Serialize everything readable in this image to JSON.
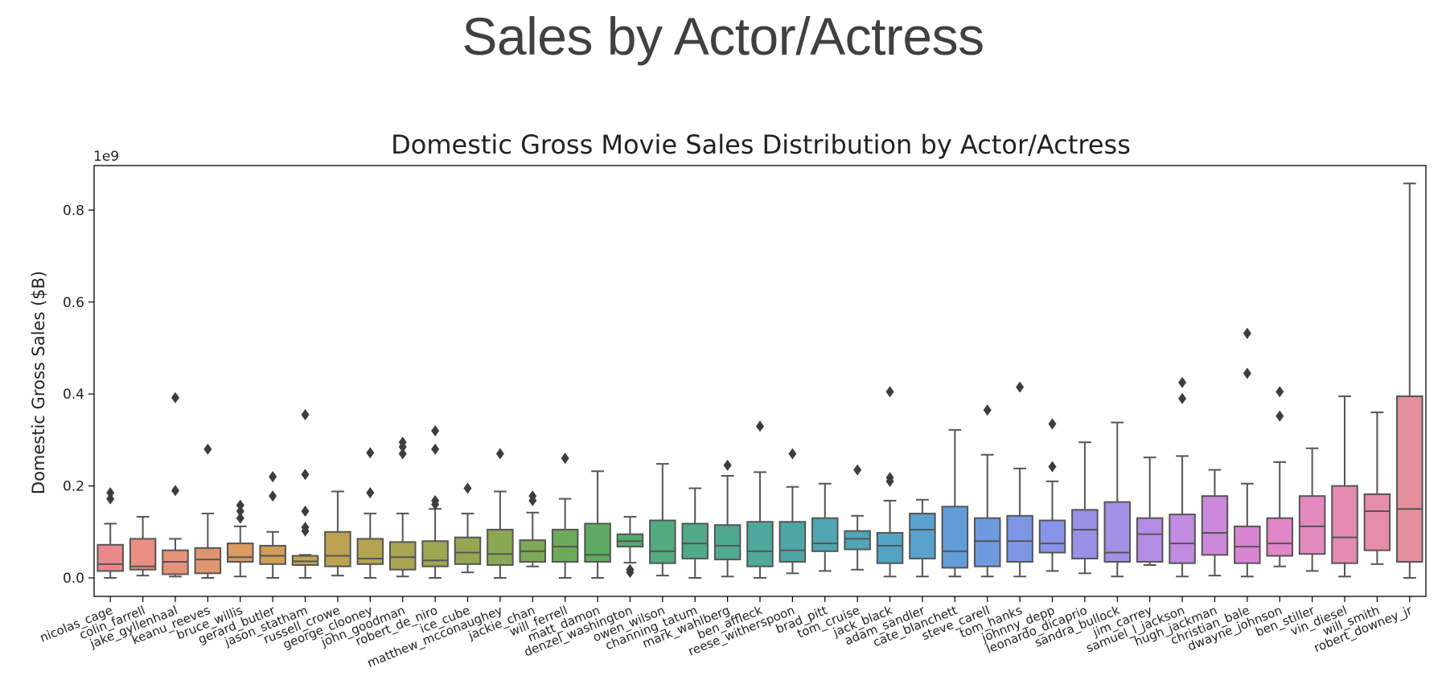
{
  "slide": {
    "title": "Sales by Actor/Actress"
  },
  "chart_data": {
    "type": "box",
    "title": "Domestic Gross Movie Sales Distribution by Actor/Actress",
    "ylabel": "Domestic Gross Sales ($B)",
    "xlabel": "",
    "y_offset_label": "1e9",
    "ylim": [
      -0.045,
      0.9
    ],
    "yticks": [
      0.0,
      0.2,
      0.4,
      0.6,
      0.8
    ],
    "ytick_labels": [
      "0.0",
      "0.2",
      "0.4",
      "0.6",
      "0.8"
    ],
    "grid": false,
    "boxes": [
      {
        "label": "nicolas_cage",
        "color": "#e9898b",
        "q1": 0.015,
        "median": 0.03,
        "q3": 0.072,
        "whislo": 0.0,
        "whishi": 0.118,
        "outliers": [
          0.172,
          0.185
        ]
      },
      {
        "label": "colin_farrell",
        "color": "#e88f82",
        "q1": 0.018,
        "median": 0.025,
        "q3": 0.085,
        "whislo": 0.005,
        "whishi": 0.133,
        "outliers": []
      },
      {
        "label": "jake_gyllenhaal",
        "color": "#e59379",
        "q1": 0.008,
        "median": 0.035,
        "q3": 0.06,
        "whislo": 0.003,
        "whishi": 0.085,
        "outliers": [
          0.19,
          0.392
        ]
      },
      {
        "label": "keanu_reeves",
        "color": "#df966f",
        "q1": 0.01,
        "median": 0.04,
        "q3": 0.065,
        "whislo": 0.0,
        "whishi": 0.14,
        "outliers": [
          0.28
        ]
      },
      {
        "label": "bruce_willis",
        "color": "#d99b60",
        "q1": 0.035,
        "median": 0.045,
        "q3": 0.075,
        "whislo": 0.003,
        "whishi": 0.112,
        "outliers": [
          0.13,
          0.145,
          0.158
        ]
      },
      {
        "label": "gerard_butler",
        "color": "#d09e58",
        "q1": 0.03,
        "median": 0.048,
        "q3": 0.07,
        "whislo": 0.0,
        "whishi": 0.1,
        "outliers": [
          0.178,
          0.22
        ]
      },
      {
        "label": "jason_statham",
        "color": "#c7a155",
        "q1": 0.028,
        "median": 0.036,
        "q3": 0.048,
        "whislo": 0.0,
        "whishi": 0.05,
        "outliers": [
          0.102,
          0.11,
          0.145,
          0.225,
          0.355
        ]
      },
      {
        "label": "russell_crowe",
        "color": "#bda252",
        "q1": 0.025,
        "median": 0.048,
        "q3": 0.1,
        "whislo": 0.005,
        "whishi": 0.188,
        "outliers": []
      },
      {
        "label": "george_clooney",
        "color": "#b4a451",
        "q1": 0.03,
        "median": 0.042,
        "q3": 0.085,
        "whislo": 0.0,
        "whishi": 0.14,
        "outliers": [
          0.185,
          0.272
        ]
      },
      {
        "label": "john_goodman",
        "color": "#aaa550",
        "q1": 0.018,
        "median": 0.045,
        "q3": 0.078,
        "whislo": 0.003,
        "whishi": 0.14,
        "outliers": [
          0.27,
          0.285,
          0.295
        ]
      },
      {
        "label": "robert_de_niro",
        "color": "#a0a650",
        "q1": 0.025,
        "median": 0.038,
        "q3": 0.08,
        "whislo": 0.0,
        "whishi": 0.15,
        "outliers": [
          0.16,
          0.168,
          0.28,
          0.32
        ]
      },
      {
        "label": "ice_cube",
        "color": "#95a751",
        "q1": 0.03,
        "median": 0.055,
        "q3": 0.088,
        "whislo": 0.012,
        "whishi": 0.14,
        "outliers": [
          0.195
        ]
      },
      {
        "label": "matthew_mcconaughey",
        "color": "#8aa853",
        "q1": 0.028,
        "median": 0.052,
        "q3": 0.105,
        "whislo": 0.0,
        "whishi": 0.188,
        "outliers": [
          0.27
        ]
      },
      {
        "label": "jackie_chan",
        "color": "#7ea956",
        "q1": 0.035,
        "median": 0.058,
        "q3": 0.082,
        "whislo": 0.025,
        "whishi": 0.142,
        "outliers": [
          0.168,
          0.178
        ]
      },
      {
        "label": "will_ferrell",
        "color": "#6ea95a",
        "q1": 0.035,
        "median": 0.068,
        "q3": 0.105,
        "whislo": 0.0,
        "whishi": 0.172,
        "outliers": [
          0.26
        ]
      },
      {
        "label": "matt_damon",
        "color": "#5eaa62",
        "q1": 0.035,
        "median": 0.05,
        "q3": 0.118,
        "whislo": 0.0,
        "whishi": 0.232,
        "outliers": []
      },
      {
        "label": "denzel_washington",
        "color": "#54aa71",
        "q1": 0.068,
        "median": 0.08,
        "q3": 0.095,
        "whislo": 0.033,
        "whishi": 0.133,
        "outliers": [
          0.012,
          0.018
        ]
      },
      {
        "label": "owen_wilson",
        "color": "#52aa7f",
        "q1": 0.032,
        "median": 0.058,
        "q3": 0.125,
        "whislo": 0.005,
        "whishi": 0.248,
        "outliers": []
      },
      {
        "label": "channing_tatum",
        "color": "#50aa8a",
        "q1": 0.042,
        "median": 0.075,
        "q3": 0.118,
        "whislo": 0.0,
        "whishi": 0.195,
        "outliers": []
      },
      {
        "label": "mark_wahlberg",
        "color": "#4fa993",
        "q1": 0.04,
        "median": 0.07,
        "q3": 0.115,
        "whislo": 0.003,
        "whishi": 0.222,
        "outliers": [
          0.245
        ]
      },
      {
        "label": "ben_affleck",
        "color": "#4ea89c",
        "q1": 0.025,
        "median": 0.058,
        "q3": 0.122,
        "whislo": 0.0,
        "whishi": 0.23,
        "outliers": [
          0.33
        ]
      },
      {
        "label": "reese_witherspoon",
        "color": "#4fa7a5",
        "q1": 0.035,
        "median": 0.06,
        "q3": 0.122,
        "whislo": 0.01,
        "whishi": 0.198,
        "outliers": [
          0.27
        ]
      },
      {
        "label": "brad_pitt",
        "color": "#50a6ae",
        "q1": 0.058,
        "median": 0.075,
        "q3": 0.13,
        "whislo": 0.015,
        "whishi": 0.205,
        "outliers": []
      },
      {
        "label": "tom_cruise",
        "color": "#52a4b8",
        "q1": 0.062,
        "median": 0.085,
        "q3": 0.102,
        "whislo": 0.018,
        "whishi": 0.135,
        "outliers": [
          0.235
        ]
      },
      {
        "label": "jack_black",
        "color": "#55a3c2",
        "q1": 0.032,
        "median": 0.07,
        "q3": 0.098,
        "whislo": 0.003,
        "whishi": 0.168,
        "outliers": [
          0.21,
          0.218,
          0.405
        ]
      },
      {
        "label": "adam_sandler",
        "color": "#5aa1cd",
        "q1": 0.042,
        "median": 0.105,
        "q3": 0.14,
        "whislo": 0.003,
        "whishi": 0.17,
        "outliers": []
      },
      {
        "label": "cate_blanchett",
        "color": "#639dd8",
        "q1": 0.022,
        "median": 0.058,
        "q3": 0.155,
        "whislo": 0.003,
        "whishi": 0.322,
        "outliers": []
      },
      {
        "label": "steve_carell",
        "color": "#6e9ae0",
        "q1": 0.025,
        "median": 0.08,
        "q3": 0.13,
        "whislo": 0.003,
        "whishi": 0.268,
        "outliers": [
          0.365
        ]
      },
      {
        "label": "tom_hanks",
        "color": "#7b97e6",
        "q1": 0.035,
        "median": 0.08,
        "q3": 0.135,
        "whislo": 0.003,
        "whishi": 0.238,
        "outliers": [
          0.415
        ]
      },
      {
        "label": "johnny_depp",
        "color": "#8894e7",
        "q1": 0.055,
        "median": 0.075,
        "q3": 0.125,
        "whislo": 0.015,
        "whishi": 0.21,
        "outliers": [
          0.242,
          0.335
        ]
      },
      {
        "label": "leonardo_dicaprio",
        "color": "#9791e7",
        "q1": 0.042,
        "median": 0.105,
        "q3": 0.148,
        "whislo": 0.01,
        "whishi": 0.295,
        "outliers": []
      },
      {
        "label": "sandra_bullock",
        "color": "#a48fe5",
        "q1": 0.035,
        "median": 0.055,
        "q3": 0.165,
        "whislo": 0.003,
        "whishi": 0.338,
        "outliers": []
      },
      {
        "label": "jim_carrey",
        "color": "#b38de3",
        "q1": 0.035,
        "median": 0.095,
        "q3": 0.13,
        "whislo": 0.028,
        "whishi": 0.262,
        "outliers": []
      },
      {
        "label": "samuel_l_jackson",
        "color": "#c08be0",
        "q1": 0.032,
        "median": 0.075,
        "q3": 0.138,
        "whislo": 0.003,
        "whishi": 0.265,
        "outliers": [
          0.39,
          0.425
        ]
      },
      {
        "label": "hugh_jackman",
        "color": "#cc88d9",
        "q1": 0.05,
        "median": 0.098,
        "q3": 0.178,
        "whislo": 0.005,
        "whishi": 0.235,
        "outliers": []
      },
      {
        "label": "christian_bale",
        "color": "#d886d2",
        "q1": 0.032,
        "median": 0.068,
        "q3": 0.112,
        "whislo": 0.003,
        "whishi": 0.205,
        "outliers": [
          0.445,
          0.532
        ]
      },
      {
        "label": "dwayne_johnson",
        "color": "#e087c8",
        "q1": 0.048,
        "median": 0.075,
        "q3": 0.13,
        "whislo": 0.025,
        "whishi": 0.252,
        "outliers": [
          0.352,
          0.405
        ]
      },
      {
        "label": "ben_stiller",
        "color": "#e389bd",
        "q1": 0.052,
        "median": 0.112,
        "q3": 0.178,
        "whislo": 0.015,
        "whishi": 0.282,
        "outliers": []
      },
      {
        "label": "vin_diesel",
        "color": "#e58bb2",
        "q1": 0.032,
        "median": 0.088,
        "q3": 0.2,
        "whislo": 0.003,
        "whishi": 0.395,
        "outliers": []
      },
      {
        "label": "will_smith",
        "color": "#e68da8",
        "q1": 0.06,
        "median": 0.145,
        "q3": 0.182,
        "whislo": 0.03,
        "whishi": 0.36,
        "outliers": []
      },
      {
        "label": "robert_downey_jr",
        "color": "#e58f9d",
        "q1": 0.035,
        "median": 0.15,
        "q3": 0.395,
        "whislo": 0.0,
        "whishi": 0.858,
        "outliers": []
      }
    ]
  }
}
